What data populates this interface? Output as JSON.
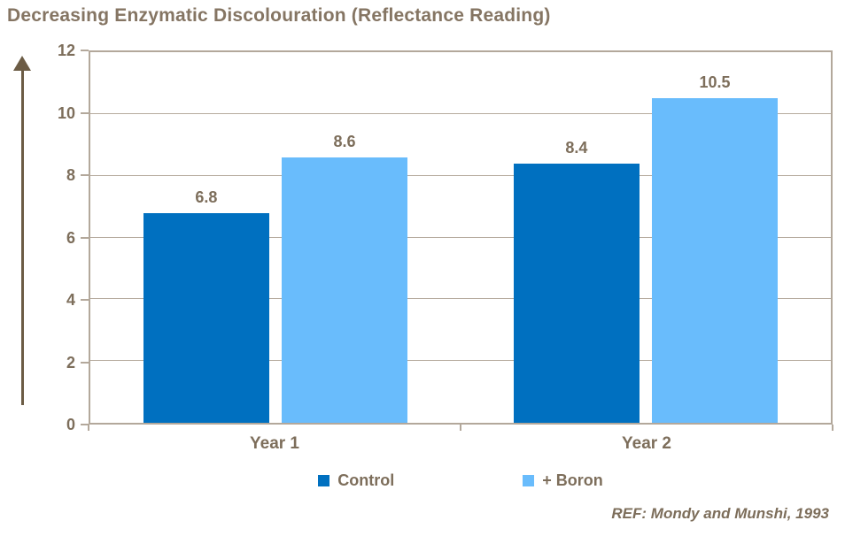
{
  "title": "Decreasing Enzymatic Discolouration (Reflectance Reading)",
  "reference": "REF: Mondy and Munshi, 1993",
  "colors": {
    "text_brown": "#7d6e5b",
    "title_brown": "#857563",
    "axis_line": "#b3a89b",
    "gridline": "#b6ab9e",
    "arrow": "#6c5c45",
    "control_blue": "#0070c0",
    "boron_blue": "#69bcfc"
  },
  "chart_data": {
    "type": "bar",
    "title": "Decreasing Enzymatic Discolouration (Reflectance Reading)",
    "categories": [
      "Year 1",
      "Year 2"
    ],
    "series": [
      {
        "name": "Control",
        "color": "#0070c0",
        "values": [
          6.8,
          8.4
        ],
        "labels": [
          "6.8",
          "8.4"
        ]
      },
      {
        "name": "+ Boron",
        "color": "#69bcfc",
        "values": [
          8.6,
          10.5
        ],
        "labels": [
          "8.6",
          "10.5"
        ]
      }
    ],
    "xlabel": "",
    "ylabel": "",
    "ylim": [
      0,
      12
    ],
    "yticks": [
      0,
      2,
      4,
      6,
      8,
      10,
      12
    ],
    "grid": true,
    "legend_position": "bottom",
    "annotation": "REF: Mondy and Munshi, 1993"
  }
}
